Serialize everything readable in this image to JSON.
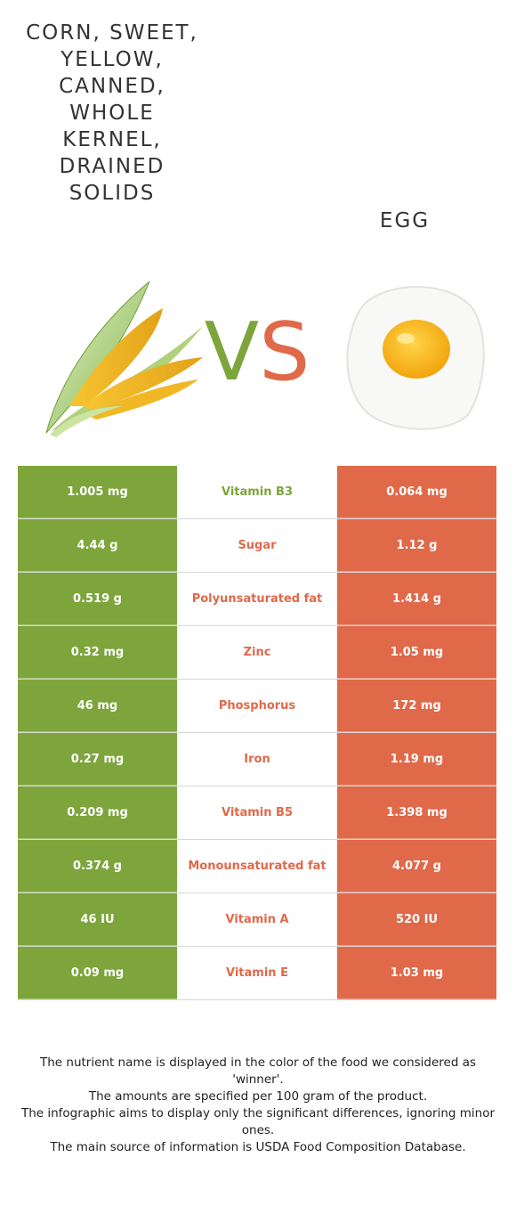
{
  "header": {
    "left_food": "Corn, sweet,\nyellow,\ncanned,\nwhole\nkernel,\ndrained\nsolids",
    "right_food": "Egg",
    "vs_v": "V",
    "vs_s": "S"
  },
  "colors": {
    "left_winner": "#7da53b",
    "right_winner": "#e0694a"
  },
  "rows": [
    {
      "left": "1.005 mg",
      "nutrient": "Vitamin B3",
      "right": "0.064 mg",
      "winner": "left"
    },
    {
      "left": "4.44 g",
      "nutrient": "Sugar",
      "right": "1.12 g",
      "winner": "right"
    },
    {
      "left": "0.519 g",
      "nutrient": "Polyunsaturated fat",
      "right": "1.414 g",
      "winner": "right"
    },
    {
      "left": "0.32 mg",
      "nutrient": "Zinc",
      "right": "1.05 mg",
      "winner": "right"
    },
    {
      "left": "46 mg",
      "nutrient": "Phosphorus",
      "right": "172 mg",
      "winner": "right"
    },
    {
      "left": "0.27 mg",
      "nutrient": "Iron",
      "right": "1.19 mg",
      "winner": "right"
    },
    {
      "left": "0.209 mg",
      "nutrient": "Vitamin B5",
      "right": "1.398 mg",
      "winner": "right"
    },
    {
      "left": "0.374 g",
      "nutrient": "Monounsaturated fat",
      "right": "4.077 g",
      "winner": "right"
    },
    {
      "left": "46 IU",
      "nutrient": "Vitamin A",
      "right": "520 IU",
      "winner": "right"
    },
    {
      "left": "0.09 mg",
      "nutrient": "Vitamin E",
      "right": "1.03 mg",
      "winner": "right"
    }
  ],
  "footnote": {
    "line1": "The nutrient name is displayed in the color of the food we considered as 'winner'.",
    "line2": "The amounts are specified per 100 gram of the product.",
    "line3": "The infographic aims to display only the significant differences, ignoring minor ones.",
    "line4": "The main source of information is USDA Food Composition Database."
  }
}
